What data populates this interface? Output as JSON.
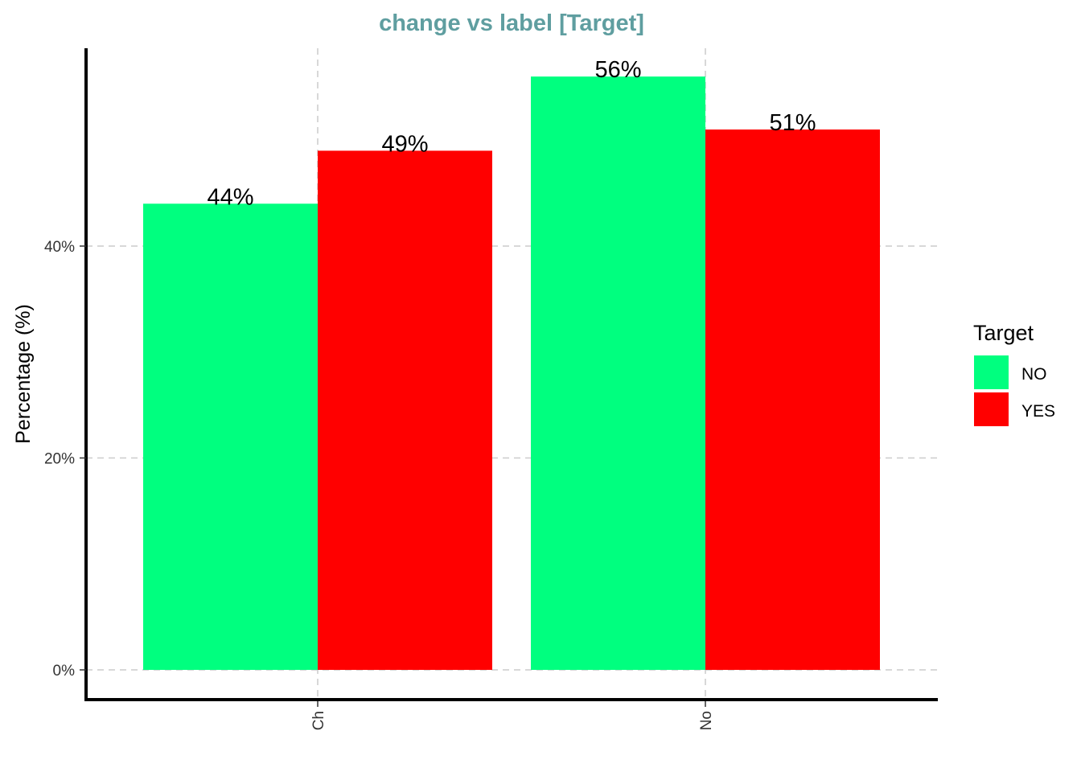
{
  "chart_data": {
    "type": "bar",
    "title": "change vs label [Target]",
    "xlabel": "",
    "ylabel": "Percentage (%)",
    "categories": [
      "Ch",
      "No"
    ],
    "series": [
      {
        "name": "NO",
        "values": [
          44,
          56
        ],
        "labels": [
          "44%",
          "56%"
        ]
      },
      {
        "name": "YES",
        "values": [
          49,
          51
        ],
        "labels": [
          "49%",
          "51%"
        ]
      }
    ],
    "ylim": [
      0,
      59.1
    ],
    "yticks": [
      0,
      20,
      40
    ],
    "ytick_labels": [
      "0%",
      "20%",
      "40%"
    ],
    "legend": {
      "title": "Target",
      "position": "right"
    },
    "grid": true
  },
  "colors": {
    "NO": "#00FF7F",
    "YES": "#FF0000",
    "title": "#5F9EA0",
    "grid": "#CCCCCC",
    "axis": "#000000",
    "tick_text": "#333333"
  }
}
